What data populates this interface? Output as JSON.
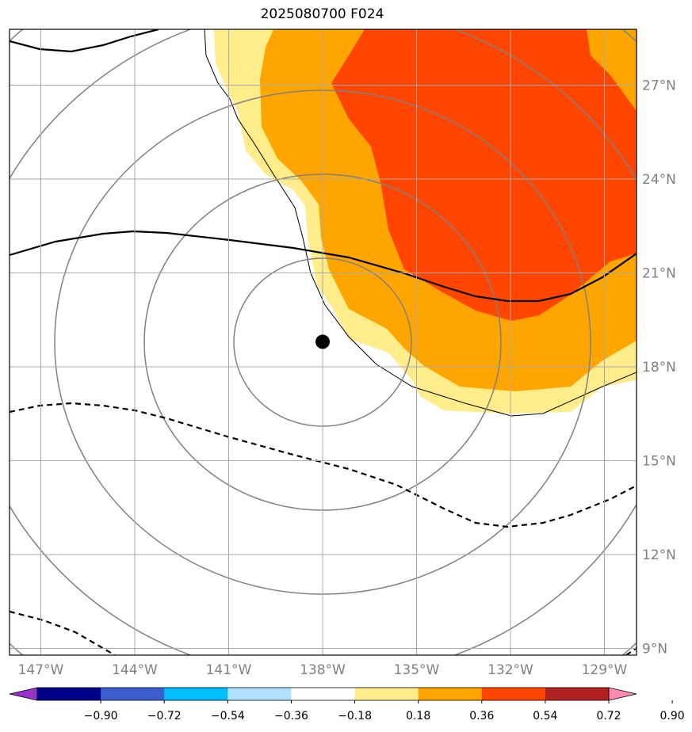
{
  "title": "2025080700 F024",
  "lon_ticks": [
    {
      "value": -147,
      "label": "147°W"
    },
    {
      "value": -144,
      "label": "144°W"
    },
    {
      "value": -141,
      "label": "141°W"
    },
    {
      "value": -138,
      "label": "138°W"
    },
    {
      "value": -135,
      "label": "135°W"
    },
    {
      "value": -132,
      "label": "132°W"
    },
    {
      "value": -129,
      "label": "129°W"
    }
  ],
  "lat_ticks": [
    {
      "value": 9,
      "label": "9°N"
    },
    {
      "value": 12,
      "label": "12°N"
    },
    {
      "value": 15,
      "label": "15°N"
    },
    {
      "value": 18,
      "label": "18°N"
    },
    {
      "value": 21,
      "label": "21°N"
    },
    {
      "value": 24,
      "label": "24°N"
    },
    {
      "value": 27,
      "label": "27°N"
    }
  ],
  "center_marker": {
    "lon": -138.0,
    "lat": 18.8
  },
  "colorbar": {
    "colors": [
      "#9932cc",
      "#00008b",
      "#3a5fcd",
      "#00bfff",
      "#b0e2ff",
      "#ffffff",
      "#ffec8b",
      "#ffa500",
      "#ff4500",
      "#b22222",
      "#ff88b0"
    ],
    "labels": [
      "−0.90",
      "−0.72",
      "−0.54",
      "−0.36",
      "−0.18",
      "0.18",
      "0.36",
      "0.54",
      "0.72",
      "0.90"
    ]
  }
}
